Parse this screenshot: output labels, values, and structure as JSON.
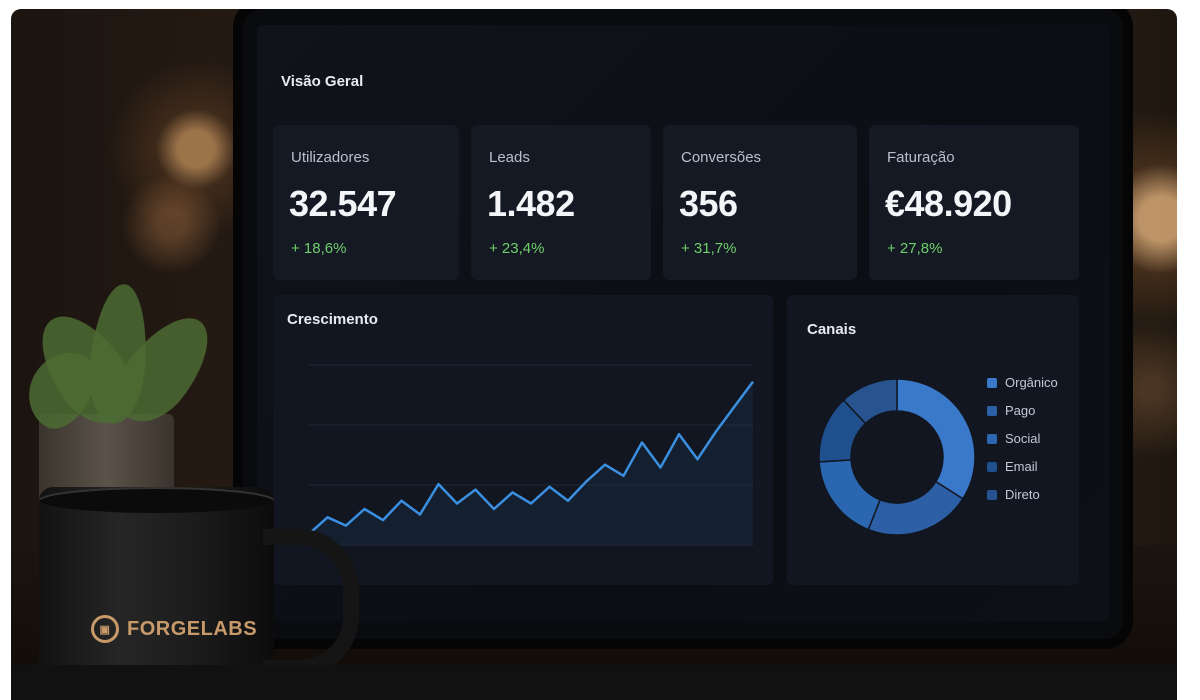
{
  "dashboard": {
    "title": "Visão Geral",
    "kpis": [
      {
        "label": "Utilizadores",
        "value": "32.547",
        "delta": "+ 18,6%"
      },
      {
        "label": "Leads",
        "value": "1.482",
        "delta": "+ 23,4%"
      },
      {
        "label": "Conversões",
        "value": "356",
        "delta": "+ 31,7%"
      },
      {
        "label": "Faturação",
        "value": "€48.920",
        "delta": "+ 27,8%"
      }
    ],
    "growth": {
      "title": "Crescimento"
    },
    "channels": {
      "title": "Canais"
    }
  },
  "brand": {
    "mug_logo": "FORGELABS"
  },
  "colors": {
    "accent_line": "#3b8fe0",
    "positive": "#6fcf6a",
    "card_bg": "#141924"
  },
  "chart_data": [
    {
      "type": "line",
      "title": "Crescimento",
      "x": [
        1,
        2,
        3,
        4,
        5,
        6,
        7,
        8,
        9,
        10,
        11,
        12,
        13,
        14,
        15,
        16,
        17,
        18,
        19,
        20,
        21,
        22,
        23,
        24,
        25
      ],
      "y": [
        8,
        20,
        14,
        26,
        18,
        32,
        22,
        44,
        30,
        40,
        26,
        38,
        30,
        42,
        32,
        46,
        58,
        50,
        74,
        56,
        80,
        62,
        82,
        100,
        118
      ],
      "ylim": [
        0,
        130
      ],
      "grid": true
    },
    {
      "type": "pie",
      "title": "Canais",
      "labels": [
        "Orgânico",
        "Pago",
        "Social",
        "Email",
        "Direto"
      ],
      "values": [
        34,
        22,
        18,
        14,
        12
      ],
      "colors": [
        "#3a78c9",
        "#2d5fa6",
        "#2a67b0",
        "#1f4f8c",
        "#27538f"
      ],
      "legend": "right"
    }
  ]
}
